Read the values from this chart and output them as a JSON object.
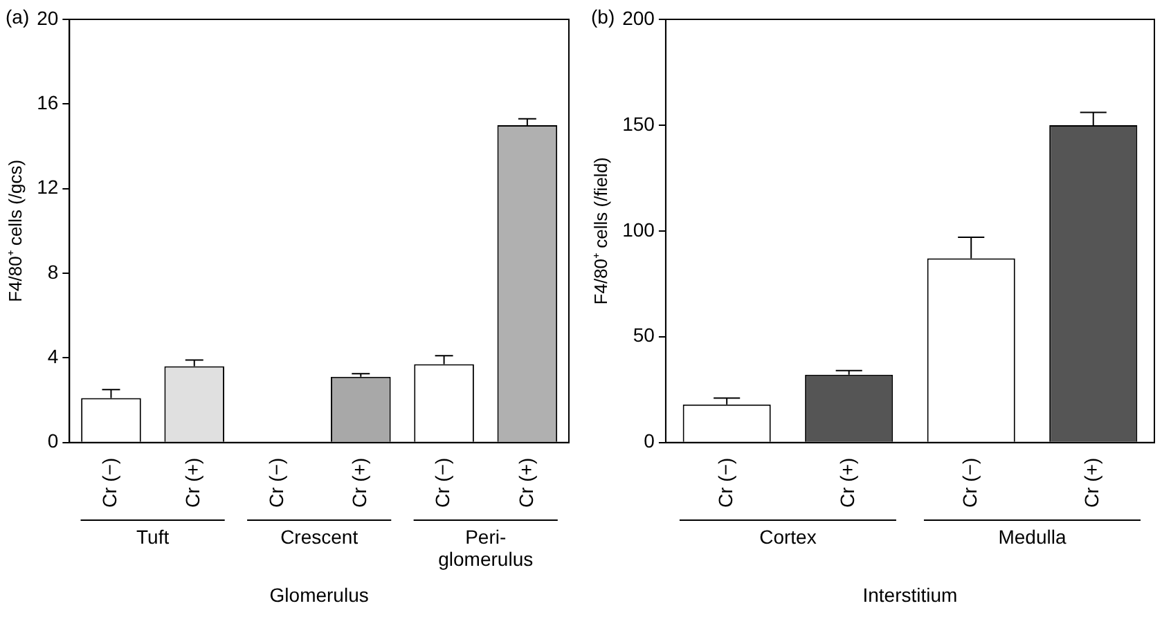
{
  "chart_data": [
    {
      "type": "bar",
      "title": "(a)",
      "ylabel": "F4/80⁺ cells (/gcs)",
      "xlabel": "Glomerulus",
      "categories": [
        "Cr (−)",
        "Cr (+)",
        "Cr (−)",
        "Cr (+)",
        "Cr (−)",
        "Cr (+)"
      ],
      "values": [
        2.1,
        3.6,
        0,
        3.1,
        3.7,
        15.0
      ],
      "errors": [
        [
          2.1,
          2.5
        ],
        [
          3.6,
          3.9
        ],
        null,
        [
          3.1,
          3.25
        ],
        [
          3.7,
          4.1
        ],
        [
          15.0,
          15.3
        ]
      ],
      "colors": [
        "#ffffff",
        "#e0e0e0",
        "#ffffff",
        "#a8a8a8",
        "#ffffff",
        "#b0b0b0"
      ],
      "annotations": [
        "Tuft",
        "Crescent",
        "Peri-\nglomerulus"
      ],
      "ylim": [
        0,
        20
      ],
      "yticks": [
        0,
        4,
        8,
        12,
        16,
        20
      ],
      "grid": false,
      "legend": false
    },
    {
      "type": "bar",
      "title": "(b)",
      "ylabel": "F4/80⁺ cells (/field)",
      "xlabel": "Interstitium",
      "categories": [
        "Cr (−)",
        "Cr (+)",
        "Cr (−)",
        "Cr (+)"
      ],
      "values": [
        18,
        32,
        87,
        150
      ],
      "errors": [
        [
          18,
          21
        ],
        [
          32,
          34
        ],
        [
          87,
          97
        ],
        [
          150,
          156
        ]
      ],
      "colors": [
        "#ffffff",
        "#555555",
        "#ffffff",
        "#555555"
      ],
      "annotations": [
        "Cortex",
        "Medulla"
      ],
      "ylim": [
        0,
        200
      ],
      "yticks": [
        0,
        50,
        100,
        150,
        200
      ],
      "grid": false,
      "legend": false
    }
  ]
}
